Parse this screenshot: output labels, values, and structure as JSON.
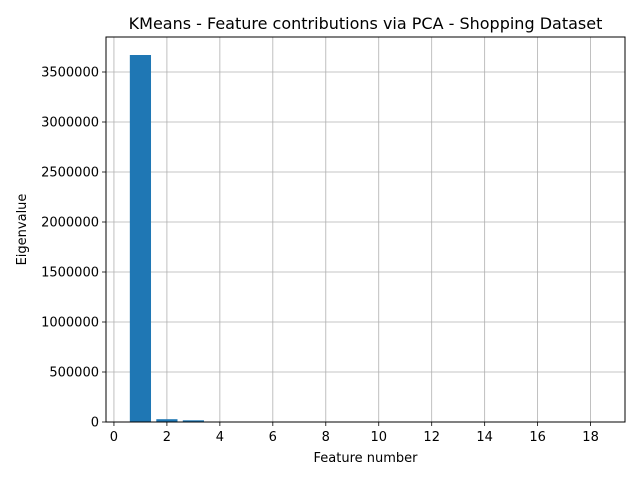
{
  "chart_data": {
    "type": "bar",
    "title": "KMeans - Feature contributions via PCA - Shopping Dataset",
    "xlabel": "Feature number",
    "ylabel": "Eigenvalue",
    "x": [
      1,
      2,
      3,
      4,
      5,
      6,
      7,
      8,
      9,
      10,
      11,
      12,
      13,
      14,
      15,
      16,
      17,
      18
    ],
    "values": [
      3670000,
      28000,
      17000,
      2000,
      1200,
      800,
      500,
      400,
      300,
      250,
      200,
      150,
      120,
      100,
      80,
      60,
      40,
      20
    ],
    "xlim": [
      -0.3,
      19.3
    ],
    "ylim": [
      0,
      3850000
    ],
    "xticks": [
      0,
      2,
      4,
      6,
      8,
      10,
      12,
      14,
      16,
      18
    ],
    "yticks": [
      0,
      500000,
      1000000,
      1500000,
      2000000,
      2500000,
      3000000,
      3500000
    ],
    "xtick_labels": [
      "0",
      "2",
      "4",
      "6",
      "8",
      "10",
      "12",
      "14",
      "16",
      "18"
    ],
    "ytick_labels": [
      "0",
      "500000",
      "1000000",
      "1500000",
      "2000000",
      "2500000",
      "3000000",
      "3500000"
    ],
    "bar_color": "#1f77b4",
    "grid": true,
    "legend": null
  }
}
